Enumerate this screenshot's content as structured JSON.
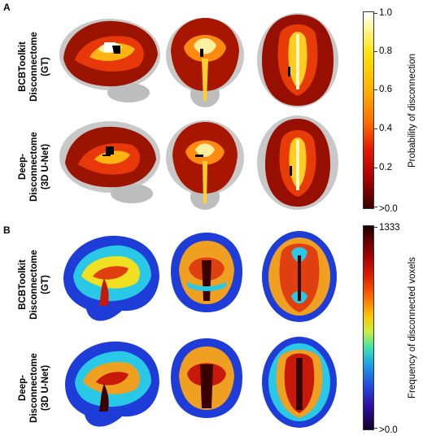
{
  "panels": [
    {
      "letter": "A",
      "rows": [
        {
          "line1": "BCBToolkit",
          "line2": "Disconnectome",
          "line3": "(GT)"
        },
        {
          "line1": "Deep-",
          "line2": "Disconnectome",
          "line3": "(3D U-Net)"
        }
      ],
      "colorbar": {
        "title": "Probability of disconnection",
        "colormap": "hot",
        "ticks": [
          "1.0",
          "0.8",
          "0.6",
          "0.4",
          "0.2",
          ">0.0"
        ]
      }
    },
    {
      "letter": "B",
      "rows": [
        {
          "line1": "BCBToolkit",
          "line2": "Disconnectome",
          "line3": "(GT)"
        },
        {
          "line1": "Deep-",
          "line2": "Disconnectome",
          "line3": "(3D U-Net)"
        }
      ],
      "colorbar": {
        "title": "Frequency of disconnected voxels",
        "colormap": "jet",
        "ticks": [
          "1333",
          ">0.0"
        ]
      }
    }
  ],
  "views": [
    "sagittal",
    "coronal",
    "axial"
  ],
  "colors": {
    "brain_gray": "#c8c8c8",
    "hot_dark": "#8a0a00",
    "hot_mid": "#e8380a",
    "hot_bright": "#ffd21a",
    "hot_white": "#fffbe0",
    "jet_blue": "#1e3cd8",
    "jet_cyan": "#28c8e6",
    "jet_yellow": "#f0e020",
    "jet_red": "#c81808",
    "jet_dark": "#3a0000"
  }
}
